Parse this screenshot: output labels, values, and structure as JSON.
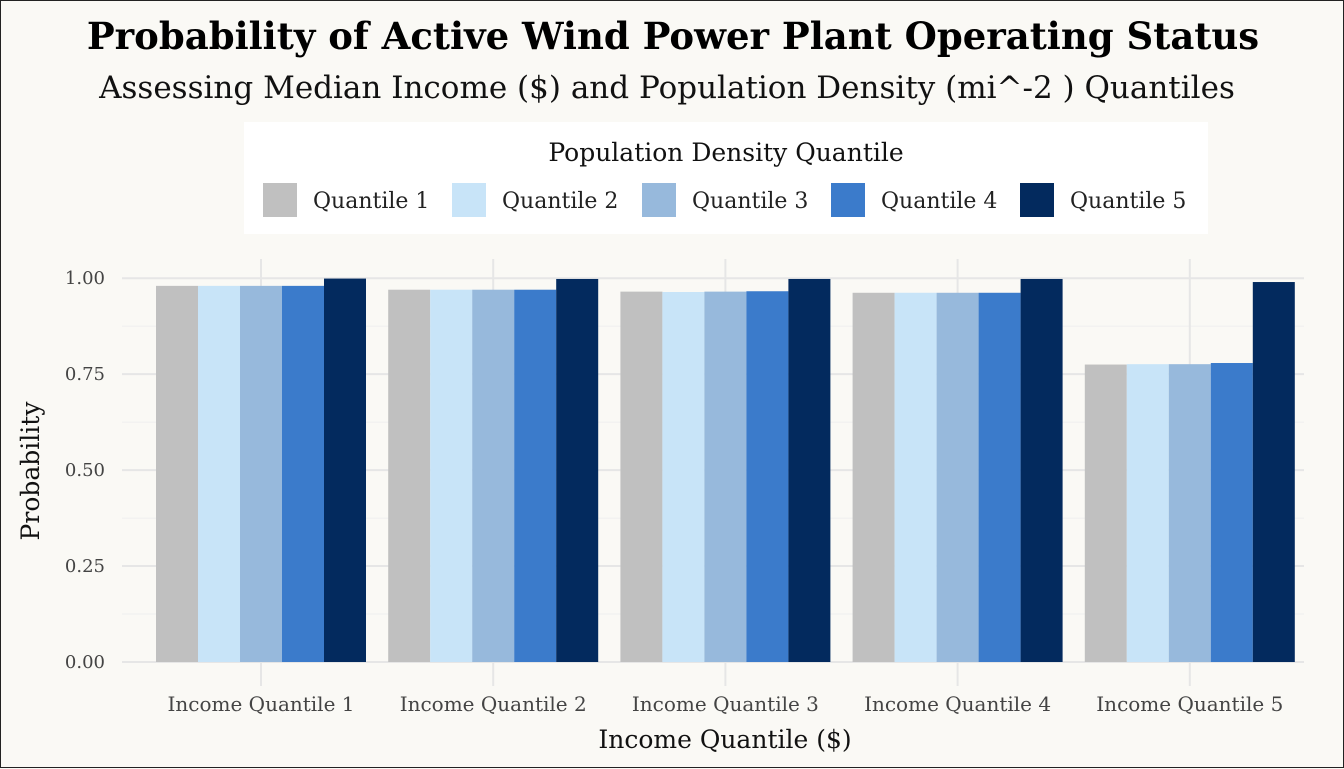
{
  "chart_data": {
    "type": "bar",
    "title": "Probability of Active Wind Power Plant Operating Status",
    "subtitle": "Assessing Median Income ($) and Population Density (mi^-2 ) Quantiles",
    "xlabel": "Income Quantile ($)",
    "ylabel": "Probability",
    "ylim": [
      0,
      1.05
    ],
    "yticks": [
      0.0,
      0.25,
      0.5,
      0.75,
      1.0
    ],
    "ytick_labels": [
      "0.00",
      "0.25",
      "0.50",
      "0.75",
      "1.00"
    ],
    "grid": true,
    "legend": {
      "title": "Population Density Quantile",
      "placement": "top"
    },
    "categories": [
      "Income Quantile 1",
      "Income Quantile 2",
      "Income Quantile 3",
      "Income Quantile 4",
      "Income Quantile 5"
    ],
    "series": [
      {
        "name": "Quantile 1",
        "color": "#c0c0c0",
        "values": [
          0.98,
          0.97,
          0.965,
          0.962,
          0.775
        ]
      },
      {
        "name": "Quantile 2",
        "color": "#c8e4f8",
        "values": [
          0.98,
          0.97,
          0.964,
          0.962,
          0.776
        ]
      },
      {
        "name": "Quantile 3",
        "color": "#97b9dc",
        "values": [
          0.98,
          0.97,
          0.965,
          0.962,
          0.776
        ]
      },
      {
        "name": "Quantile 4",
        "color": "#3b7bcb",
        "values": [
          0.98,
          0.97,
          0.966,
          0.962,
          0.779
        ]
      },
      {
        "name": "Quantile 5",
        "color": "#032a5e",
        "values": [
          0.999,
          0.998,
          0.998,
          0.998,
          0.99
        ]
      }
    ]
  }
}
